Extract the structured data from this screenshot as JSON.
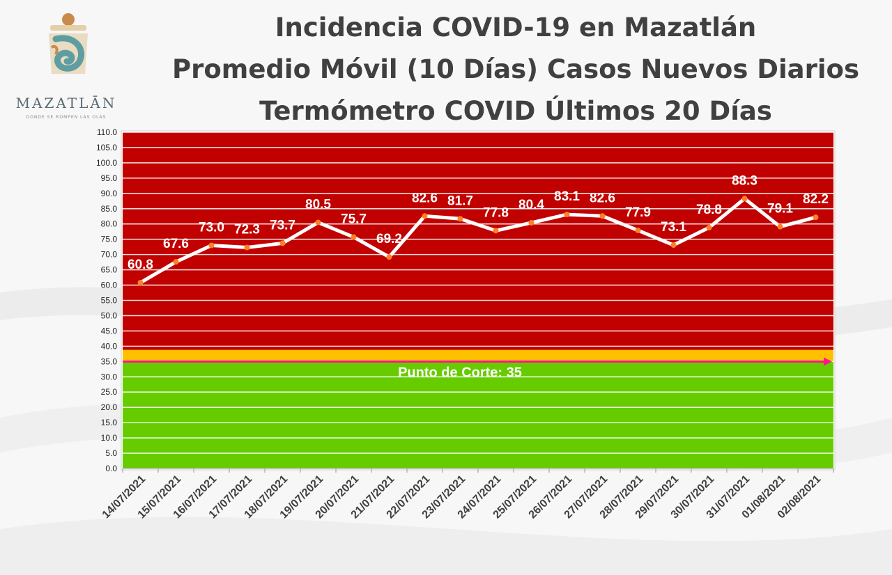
{
  "logo": {
    "name": "MAZATLĀN",
    "tagline": "DONDE SE ROMPEN LAS OLAS"
  },
  "titles": [
    "Incidencia COVID-19 en Mazatlán",
    "Promedio Móvil (10 Días) Casos Nuevos Diarios",
    "Termómetro COVID Últimos 20 Días"
  ],
  "colors": {
    "danger_zone": "#c10000",
    "cutoff_band": "#ffc000",
    "safe_zone": "#66cc00",
    "line": "#ffffff",
    "marker": "#ff7f27",
    "cutoff_line": "#ff1493",
    "title": "#404040"
  },
  "chart_data": {
    "type": "line",
    "title": "",
    "xlabel": "",
    "ylabel": "",
    "ylim": [
      0,
      110
    ],
    "ytick_step": 5,
    "yticks_labels": [
      "0.0",
      "5.0",
      "10.0",
      "15.0",
      "20.0",
      "25.0",
      "30.0",
      "35.0",
      "40.0",
      "45.0",
      "50.0",
      "55.0",
      "60.0",
      "65.0",
      "70.0",
      "75.0",
      "80.0",
      "85.0",
      "90.0",
      "95.0",
      "100.0",
      "105.0",
      "110.0"
    ],
    "categories": [
      "14/07/2021",
      "15/07/2021",
      "16/07/2021",
      "17/07/2021",
      "18/07/2021",
      "19/07/2021",
      "20/07/2021",
      "21/07/2021",
      "22/07/2021",
      "23/07/2021",
      "24/07/2021",
      "25/07/2021",
      "26/07/2021",
      "27/07/2021",
      "28/07/2021",
      "29/07/2021",
      "30/07/2021",
      "31/07/2021",
      "01/08/2021",
      "02/08/2021"
    ],
    "series": [
      {
        "values": [
          60.8,
          67.6,
          73.0,
          72.3,
          73.7,
          80.5,
          75.7,
          69.2,
          82.6,
          81.7,
          77.8,
          80.4,
          83.1,
          82.6,
          77.9,
          73.1,
          78.8,
          88.3,
          79.1,
          82.2
        ],
        "labels": [
          "60.8",
          "67.6",
          "73.0",
          "72.3",
          "73.7",
          "80.5",
          "75.7",
          "69.2",
          "82.6",
          "81.7",
          "77.8",
          "80.4",
          "83.1",
          "82.6",
          "77.9",
          "73.1",
          "78.8",
          "88.3",
          "79.1",
          "82.2"
        ]
      }
    ],
    "bands": [
      {
        "from": 0,
        "to": 35,
        "color": "#66cc00"
      },
      {
        "from": 35,
        "to": 38.8,
        "color": "#ffc000"
      },
      {
        "from": 38.8,
        "to": 110,
        "color": "#c10000"
      }
    ],
    "cutoff": {
      "value": 35,
      "label": "Punto de Corte: 35"
    },
    "grid": true,
    "legend": "none"
  }
}
